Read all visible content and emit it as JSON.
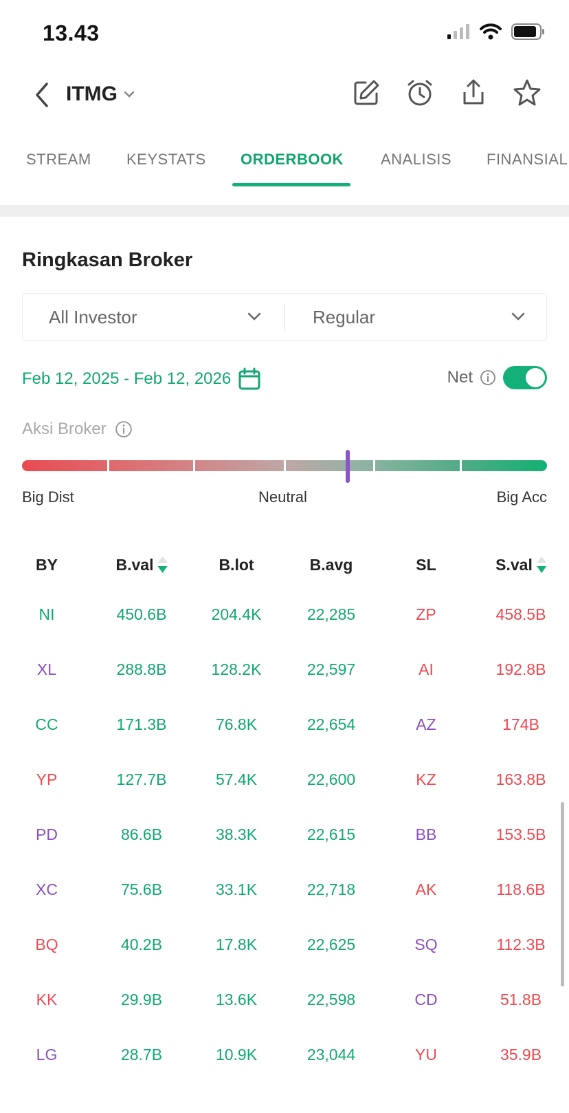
{
  "status_bar": {
    "time": "13.43",
    "icons": [
      "signal-icon",
      "wifi-icon",
      "battery-icon"
    ]
  },
  "header": {
    "ticker": "ITMG",
    "icons": [
      "back-icon",
      "edit-icon",
      "alarm-icon",
      "share-icon",
      "star-icon"
    ]
  },
  "tabs": [
    {
      "label": "STREAM",
      "active": false
    },
    {
      "label": "KEYSTATS",
      "active": false
    },
    {
      "label": "ORDERBOOK",
      "active": true
    },
    {
      "label": "ANALISIS",
      "active": false
    },
    {
      "label": "FINANSIAL",
      "active": false
    }
  ],
  "section": {
    "title": "Ringkasan Broker"
  },
  "filters": {
    "investor": "All Investor",
    "market": "Regular"
  },
  "date_range": "Feb 12, 2025 - Feb 12, 2026",
  "net": {
    "label": "Net",
    "enabled": true
  },
  "aksi": {
    "label": "Aksi Broker",
    "level": 0.62,
    "left_label": "Big Dist",
    "mid_label": "Neutral",
    "right_label": "Big Acc"
  },
  "colors": {
    "green": "#12a773",
    "red": "#ef4850",
    "purple": "#8a4fc1",
    "accent": "#12b07b"
  },
  "table": {
    "headers": [
      "BY",
      "B.val",
      "B.lot",
      "B.avg",
      "SL",
      "S.val"
    ],
    "rows": [
      {
        "by": "NI",
        "by_color": "g",
        "bval": "450.6B",
        "blot": "204.4K",
        "bavg": "22,285",
        "sl": "ZP",
        "sl_color": "r",
        "sval": "458.5B"
      },
      {
        "by": "XL",
        "by_color": "p",
        "bval": "288.8B",
        "blot": "128.2K",
        "bavg": "22,597",
        "sl": "AI",
        "sl_color": "r",
        "sval": "192.8B"
      },
      {
        "by": "CC",
        "by_color": "g",
        "bval": "171.3B",
        "blot": "76.8K",
        "bavg": "22,654",
        "sl": "AZ",
        "sl_color": "p",
        "sval": "174B"
      },
      {
        "by": "YP",
        "by_color": "r",
        "bval": "127.7B",
        "blot": "57.4K",
        "bavg": "22,600",
        "sl": "KZ",
        "sl_color": "r",
        "sval": "163.8B"
      },
      {
        "by": "PD",
        "by_color": "p",
        "bval": "86.6B",
        "blot": "38.3K",
        "bavg": "22,615",
        "sl": "BB",
        "sl_color": "p",
        "sval": "153.5B"
      },
      {
        "by": "XC",
        "by_color": "p",
        "bval": "75.6B",
        "blot": "33.1K",
        "bavg": "22,718",
        "sl": "AK",
        "sl_color": "r",
        "sval": "118.6B"
      },
      {
        "by": "BQ",
        "by_color": "r",
        "bval": "40.2B",
        "blot": "17.8K",
        "bavg": "22,625",
        "sl": "SQ",
        "sl_color": "p",
        "sval": "112.3B"
      },
      {
        "by": "KK",
        "by_color": "r",
        "bval": "29.9B",
        "blot": "13.6K",
        "bavg": "22,598",
        "sl": "CD",
        "sl_color": "p",
        "sval": "51.8B"
      },
      {
        "by": "LG",
        "by_color": "p",
        "bval": "28.7B",
        "blot": "10.9K",
        "bavg": "23,044",
        "sl": "YU",
        "sl_color": "r",
        "sval": "35.9B"
      }
    ]
  }
}
